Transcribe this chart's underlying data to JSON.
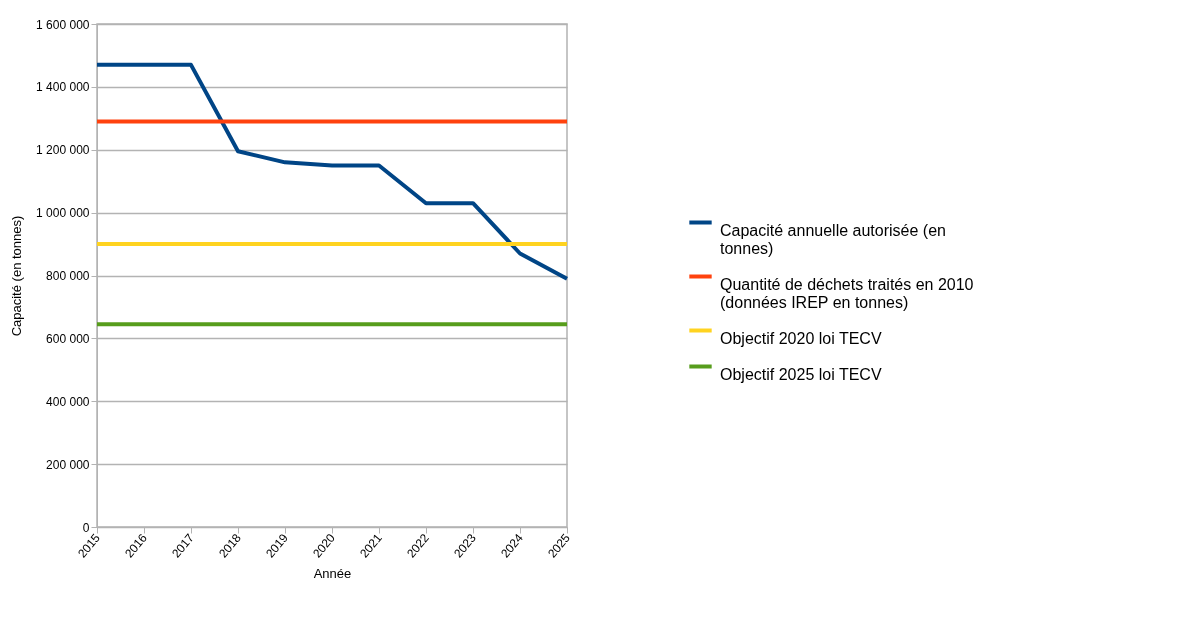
{
  "chart_data": {
    "type": "line",
    "xlabel": "Année",
    "ylabel": "Capacité (en tonnes)",
    "categories": [
      "2015",
      "2016",
      "2017",
      "2018",
      "2019",
      "2020",
      "2021",
      "2022",
      "2023",
      "2024",
      "2025"
    ],
    "series": [
      {
        "name": "Capacité annuelle autorisée (en tonnes)",
        "color": "#004586",
        "values": [
          1470000,
          1470000,
          1470000,
          1195000,
          1160000,
          1150000,
          1150000,
          1030000,
          1030000,
          870000,
          790000
        ]
      },
      {
        "name": "Quantité de déchets traités en 2010 (données IREP en tonnes)",
        "color": "#ff420e",
        "values": [
          1290000,
          1290000,
          1290000,
          1290000,
          1290000,
          1290000,
          1290000,
          1290000,
          1290000,
          1290000,
          1290000
        ]
      },
      {
        "name": "Objectif 2020 loi TECV",
        "color": "#ffd320",
        "values": [
          900000,
          900000,
          900000,
          900000,
          900000,
          900000,
          900000,
          900000,
          900000,
          900000,
          900000
        ]
      },
      {
        "name": "Objectif 2025 loi TECV",
        "color": "#579d1c",
        "values": [
          645000,
          645000,
          645000,
          645000,
          645000,
          645000,
          645000,
          645000,
          645000,
          645000,
          645000
        ]
      }
    ],
    "ylim": [
      0,
      1600000
    ],
    "yticks": [
      0,
      {
        "value": 200000,
        "label": "200 000"
      },
      {
        "value": 400000,
        "label": "400 000"
      },
      {
        "value": 600000,
        "label": "600 000"
      },
      {
        "value": 800000,
        "label": "800 000"
      },
      {
        "value": 1000000,
        "label": "1 000 000"
      },
      {
        "value": 1200000,
        "label": "1 200 000"
      },
      {
        "value": 1400000,
        "label": "1 400 000"
      },
      {
        "value": 1600000,
        "label": "1 600 000"
      }
    ],
    "grid": "y",
    "legend": "right",
    "marker": "none",
    "line_style": "solid"
  }
}
